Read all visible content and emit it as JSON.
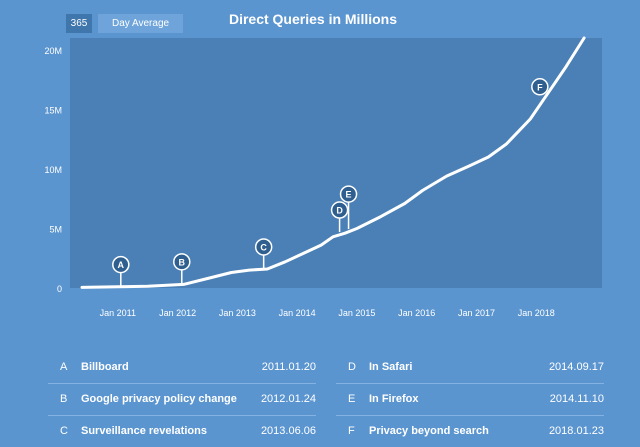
{
  "header": {
    "days": "365",
    "avg_label": "Day Average",
    "title": "Direct Queries in Millions"
  },
  "colors": {
    "background": "#5b95d0",
    "plot_area": "#4a80b6",
    "line": "#ffffff",
    "marker": "#2f5f8f"
  },
  "chart_data": {
    "type": "line",
    "title": "Direct Queries in Millions",
    "x_tick_labels": [
      "Jan 2011",
      "Jan 2012",
      "Jan 2013",
      "Jan 2014",
      "Jan 2015",
      "Jan 2016",
      "Jan 2017",
      "Jan 2018"
    ],
    "y_tick_labels": [
      "0",
      "5M",
      "10M",
      "15M",
      "20M"
    ],
    "ylim": [
      0,
      21
    ],
    "xlim": [
      2010.2,
      2019.1
    ],
    "series": [
      {
        "x": [
          2010.4,
          2011.0,
          2011.5,
          2012.1,
          2012.5,
          2012.9,
          2013.2,
          2013.5,
          2013.8,
          2014.1,
          2014.4,
          2014.6,
          2014.8,
          2015.0,
          2015.4,
          2015.8,
          2016.1,
          2016.5,
          2016.9,
          2017.2,
          2017.5,
          2017.9,
          2018.2,
          2018.5,
          2018.8
        ],
        "y": [
          0.05,
          0.1,
          0.15,
          0.3,
          0.8,
          1.3,
          1.5,
          1.6,
          2.2,
          2.9,
          3.6,
          4.3,
          4.6,
          5.0,
          6.0,
          7.1,
          8.2,
          9.4,
          10.3,
          11.0,
          12.1,
          14.2,
          16.4,
          18.6,
          21.0
        ]
      }
    ],
    "annotations": [
      {
        "letter": "A",
        "x": 2011.05,
        "y": 0.12
      },
      {
        "letter": "B",
        "x": 2012.07,
        "y": 0.35
      },
      {
        "letter": "C",
        "x": 2013.44,
        "y": 1.6
      },
      {
        "letter": "D",
        "x": 2014.71,
        "y": 4.7
      },
      {
        "letter": "E",
        "x": 2014.86,
        "y": 4.95
      },
      {
        "letter": "F",
        "x": 2018.06,
        "y": 16.9
      }
    ],
    "grid": false
  },
  "legend_left": [
    {
      "letter": "A",
      "label": "Billboard",
      "date": "2011.01.20"
    },
    {
      "letter": "B",
      "label": "Google privacy policy change",
      "date": "2012.01.24"
    },
    {
      "letter": "C",
      "label": "Surveillance revelations",
      "date": "2013.06.06"
    }
  ],
  "legend_right": [
    {
      "letter": "D",
      "label": "In Safari",
      "date": "2014.09.17"
    },
    {
      "letter": "E",
      "label": "In Firefox",
      "date": "2014.11.10"
    },
    {
      "letter": "F",
      "label": "Privacy beyond search",
      "date": "2018.01.23"
    }
  ]
}
